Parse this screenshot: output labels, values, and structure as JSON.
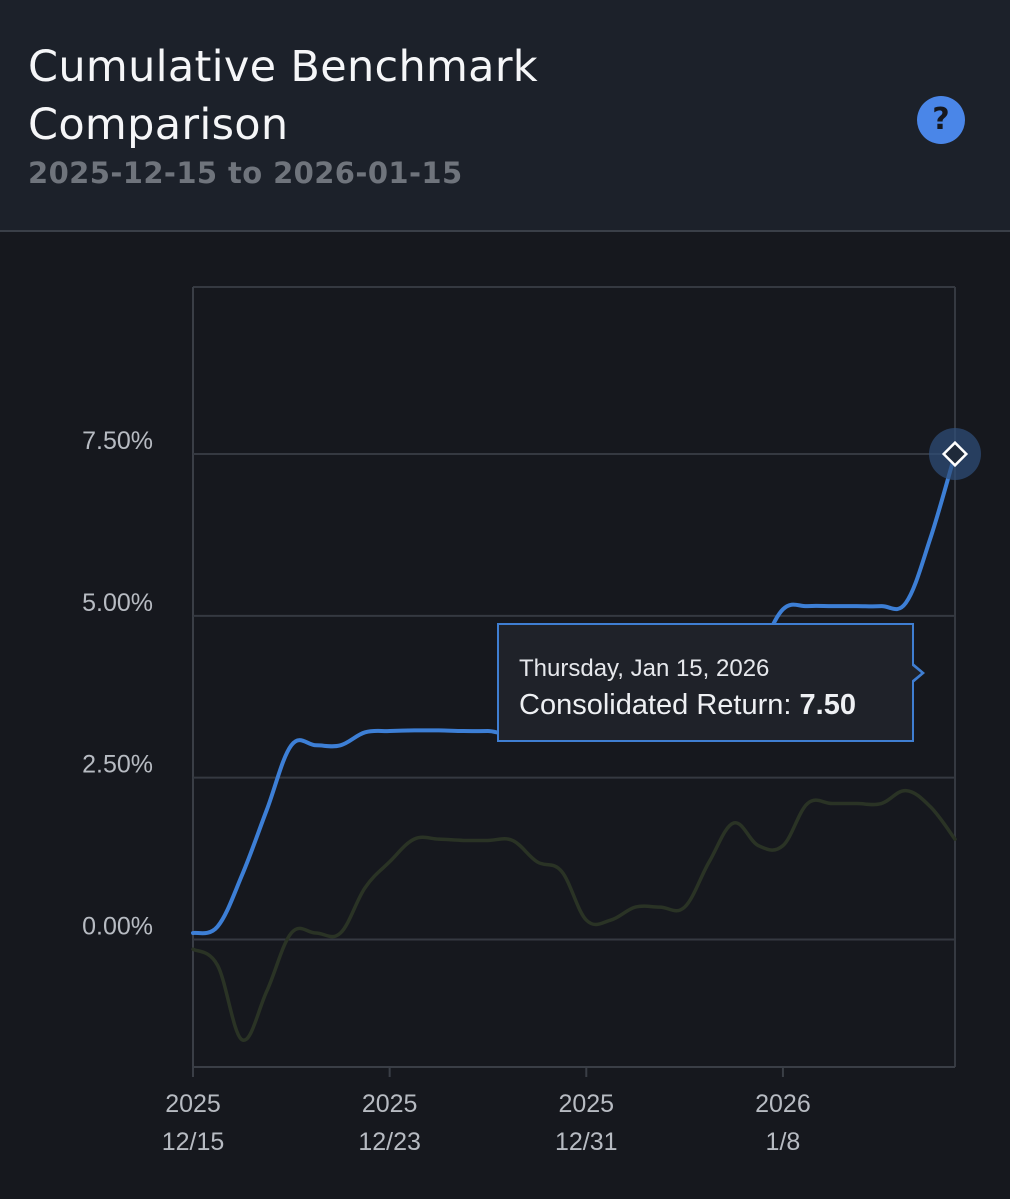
{
  "header": {
    "title": "Cumulative Benchmark Comparison",
    "subtitle": "2025-12-15 to 2026-01-15",
    "help_label": "?"
  },
  "tooltip": {
    "date": "Thursday, Jan 15, 2026",
    "label": "Consolidated Return:",
    "value": "7.50"
  },
  "colors": {
    "background": "#16181e",
    "header_background": "#1c212a",
    "consolidated_line": "#3d7fd6",
    "benchmark_line": "#2a3325",
    "grid": "#353941",
    "accent": "#4a86e8"
  },
  "chart_data": {
    "type": "line",
    "title": "Cumulative Benchmark Comparison",
    "subtitle": "2025-12-15 to 2026-01-15",
    "x_ticks": [
      {
        "year": "2025",
        "date": "12/15"
      },
      {
        "year": "2025",
        "date": "12/23"
      },
      {
        "year": "2025",
        "date": "12/31"
      },
      {
        "year": "2026",
        "date": "1/8"
      }
    ],
    "y_ticks": [
      "0.00%",
      "2.50%",
      "5.00%",
      "7.50%"
    ],
    "ylim": [
      -1.97,
      10.08
    ],
    "xlim": [
      "2025-12-15",
      "2026-01-15"
    ],
    "grid": true,
    "series": [
      {
        "name": "Consolidated Return",
        "color": "#3d7fd6",
        "points": [
          [
            "2025-12-15",
            0.1
          ],
          [
            "2025-12-16",
            0.2
          ],
          [
            "2025-12-17",
            1.0
          ],
          [
            "2025-12-18",
            2.0
          ],
          [
            "2025-12-19",
            3.0
          ],
          [
            "2025-12-20",
            3.0
          ],
          [
            "2025-12-21",
            3.0
          ],
          [
            "2025-12-22",
            3.2
          ],
          [
            "2025-12-23",
            3.22
          ],
          [
            "2025-12-24",
            3.23
          ],
          [
            "2025-12-25",
            3.23
          ],
          [
            "2025-12-26",
            3.22
          ],
          [
            "2025-12-27",
            3.22
          ],
          [
            "2025-12-28",
            3.22
          ],
          [
            "2025-12-29",
            3.7
          ],
          [
            "2025-12-30",
            4.3
          ],
          [
            "2025-12-31",
            4.0
          ],
          [
            "2026-01-01",
            4.0
          ],
          [
            "2026-01-02",
            3.78
          ],
          [
            "2026-01-03",
            3.78
          ],
          [
            "2026-01-04",
            3.78
          ],
          [
            "2026-01-05",
            3.78
          ],
          [
            "2026-01-06",
            3.8
          ],
          [
            "2026-01-07",
            4.4
          ],
          [
            "2026-01-08",
            5.1
          ],
          [
            "2026-01-09",
            5.15
          ],
          [
            "2026-01-10",
            5.15
          ],
          [
            "2026-01-11",
            5.15
          ],
          [
            "2026-01-12",
            5.15
          ],
          [
            "2026-01-13",
            5.2
          ],
          [
            "2026-01-14",
            6.2
          ],
          [
            "2026-01-15",
            7.5
          ]
        ]
      },
      {
        "color": "#2a3325",
        "points": [
          [
            "2025-12-15",
            -0.15
          ],
          [
            "2025-12-16",
            -0.4
          ],
          [
            "2025-12-17",
            -1.55
          ],
          [
            "2025-12-18",
            -0.8
          ],
          [
            "2025-12-19",
            0.1
          ],
          [
            "2025-12-20",
            0.1
          ],
          [
            "2025-12-21",
            0.1
          ],
          [
            "2025-12-22",
            0.8
          ],
          [
            "2025-12-23",
            1.2
          ],
          [
            "2025-12-24",
            1.55
          ],
          [
            "2025-12-25",
            1.55
          ],
          [
            "2025-12-26",
            1.53
          ],
          [
            "2025-12-27",
            1.53
          ],
          [
            "2025-12-28",
            1.53
          ],
          [
            "2025-12-29",
            1.2
          ],
          [
            "2025-12-30",
            1.05
          ],
          [
            "2025-12-31",
            0.3
          ],
          [
            "2026-01-01",
            0.3
          ],
          [
            "2026-01-02",
            0.5
          ],
          [
            "2026-01-03",
            0.5
          ],
          [
            "2026-01-04",
            0.5
          ],
          [
            "2026-01-05",
            1.2
          ],
          [
            "2026-01-06",
            1.8
          ],
          [
            "2026-01-07",
            1.45
          ],
          [
            "2026-01-08",
            1.45
          ],
          [
            "2026-01-09",
            2.1
          ],
          [
            "2026-01-10",
            2.1
          ],
          [
            "2026-01-11",
            2.1
          ],
          [
            "2026-01-12",
            2.1
          ],
          [
            "2026-01-13",
            2.3
          ],
          [
            "2026-01-14",
            2.05
          ],
          [
            "2026-01-15",
            1.55
          ]
        ]
      }
    ]
  }
}
